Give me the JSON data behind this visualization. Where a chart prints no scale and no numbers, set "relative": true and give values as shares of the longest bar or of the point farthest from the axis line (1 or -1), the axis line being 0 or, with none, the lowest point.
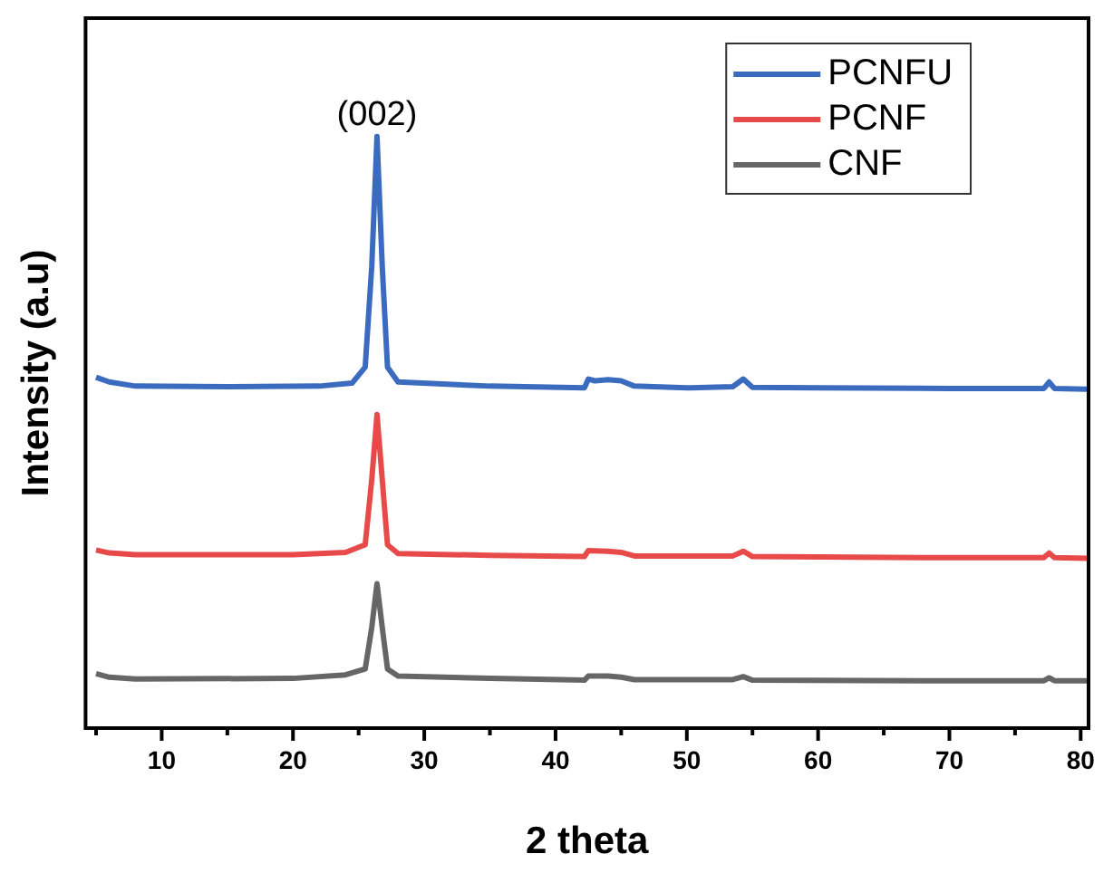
{
  "chart_data": {
    "type": "line",
    "xlabel": "2 theta",
    "ylabel": "Intensity (a.u)",
    "relative": true,
    "xlim": [
      4.2,
      80.6
    ],
    "xticks": [
      {
        "value": 5,
        "label": null
      },
      10,
      {
        "value": 15,
        "label": null
      },
      20,
      {
        "value": 25,
        "label": null
      },
      30,
      {
        "value": 35,
        "label": null
      },
      40,
      {
        "value": 45,
        "label": null
      },
      50,
      {
        "value": 55,
        "label": null
      },
      60,
      {
        "value": 65,
        "label": null
      },
      70,
      {
        "value": 75,
        "label": null
      },
      80
    ],
    "legend": "top right",
    "grid": false,
    "marker": "none",
    "line_style": "solid",
    "annotations": [
      {
        "text": "(002)",
        "x": 26.4,
        "y": 1
      }
    ],
    "series": [
      {
        "name": "PCNFU",
        "color": "#3a6bbf",
        "x": [
          5,
          6,
          8,
          15,
          22,
          24.5,
          25.5,
          26.0,
          26.4,
          26.8,
          27.2,
          28,
          35,
          42.2,
          42.5,
          43,
          44,
          45,
          46,
          50,
          53.5,
          54.3,
          55,
          60,
          70,
          77.2,
          77.6,
          78,
          80.5
        ],
        "values": [
          0.593,
          0.585,
          0.578,
          0.577,
          0.578,
          0.583,
          0.61,
          0.78,
          1,
          0.78,
          0.61,
          0.585,
          0.578,
          0.575,
          0.59,
          0.587,
          0.589,
          0.587,
          0.578,
          0.575,
          0.577,
          0.59,
          0.576,
          0.575,
          0.574,
          0.574,
          0.585,
          0.574,
          0.573
        ]
      },
      {
        "name": "PCNF",
        "color": "#e84a4a",
        "x": [
          5,
          6,
          8,
          20,
          24,
          25.5,
          26.0,
          26.4,
          26.8,
          27.2,
          28,
          35,
          42.2,
          42.5,
          44,
          45,
          46,
          53.5,
          54.3,
          55,
          70,
          77.2,
          77.6,
          78,
          80.5
        ],
        "values": [
          0.301,
          0.296,
          0.293,
          0.293,
          0.297,
          0.31,
          0.42,
          0.53,
          0.42,
          0.31,
          0.295,
          0.292,
          0.29,
          0.3,
          0.299,
          0.297,
          0.291,
          0.291,
          0.299,
          0.29,
          0.288,
          0.288,
          0.296,
          0.288,
          0.287
        ]
      },
      {
        "name": "CNF",
        "color": "#666666",
        "x": [
          5,
          6,
          8,
          20,
          24,
          25.5,
          26.0,
          26.4,
          26.8,
          27.2,
          28,
          35,
          42.2,
          42.5,
          44,
          45,
          46,
          53.5,
          54.3,
          55,
          70,
          77.2,
          77.6,
          78,
          80.5
        ],
        "values": [
          0.092,
          0.086,
          0.083,
          0.084,
          0.09,
          0.1,
          0.17,
          0.244,
          0.17,
          0.1,
          0.088,
          0.084,
          0.081,
          0.088,
          0.088,
          0.086,
          0.082,
          0.082,
          0.087,
          0.081,
          0.08,
          0.08,
          0.085,
          0.08,
          0.08
        ]
      }
    ]
  }
}
